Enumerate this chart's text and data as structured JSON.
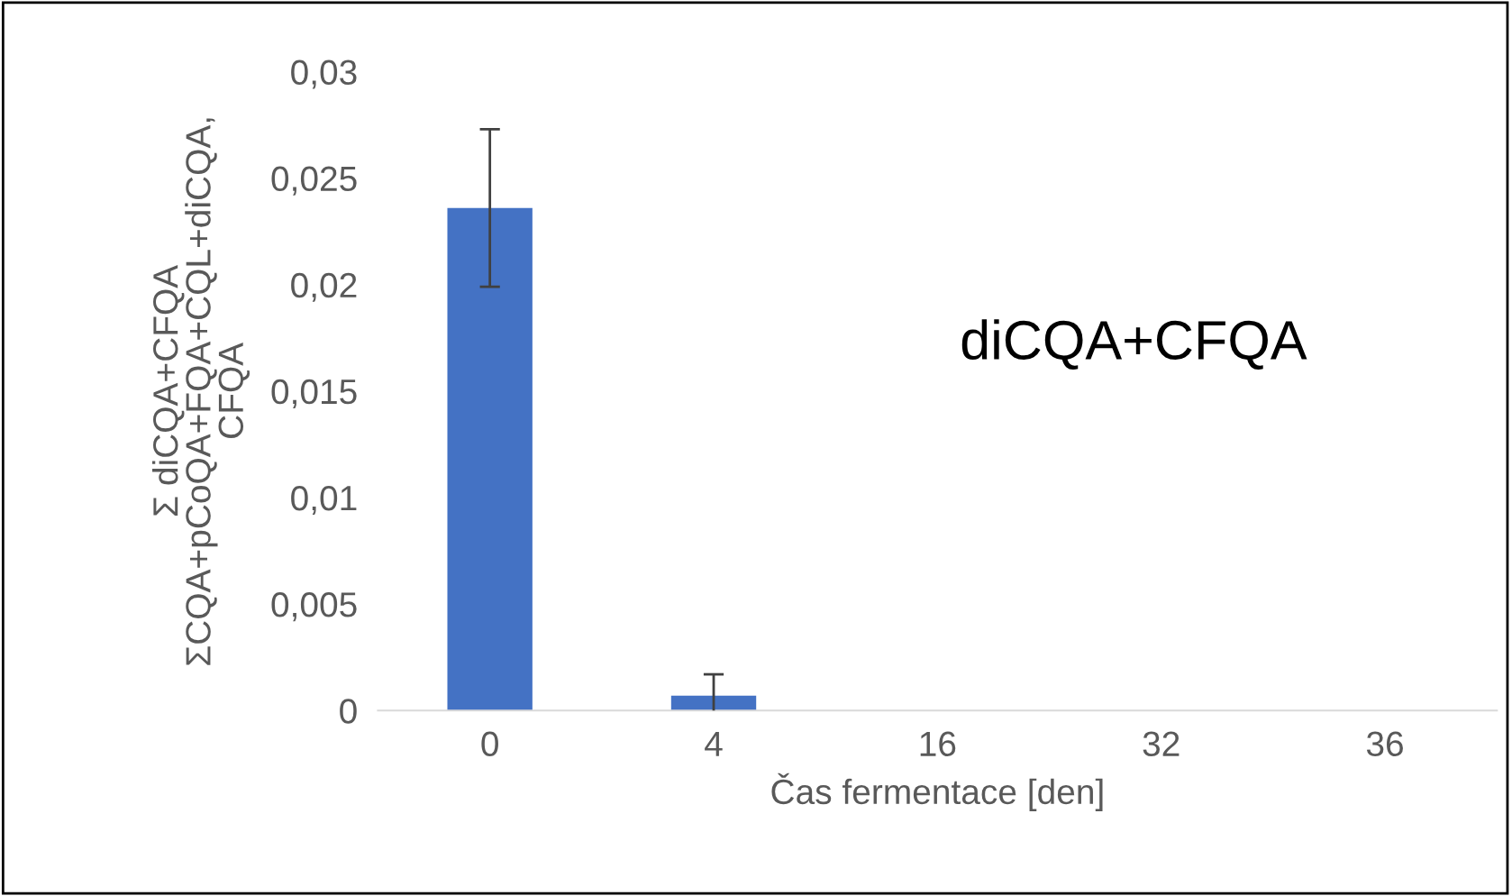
{
  "chart_data": {
    "type": "bar",
    "xlabel": "Čas fermentace [den]",
    "ylabel": "Σ diCQA+CFQA\nΣCQA+pCoQA+FQA+CQL+diCQA,\nCFQA",
    "categories": [
      "0",
      "4",
      "16",
      "32",
      "36"
    ],
    "values": [
      0.0236,
      0.0007,
      0,
      0,
      0
    ],
    "errors": [
      0.0037,
      0.001,
      null,
      null,
      null
    ],
    "color": "#4472c4",
    "ylim": [
      0,
      0.03
    ],
    "yticks": [
      {
        "value": 0,
        "label": "0"
      },
      {
        "value": 0.005,
        "label": "0,005"
      },
      {
        "value": 0.01,
        "label": "0,01"
      },
      {
        "value": 0.015,
        "label": "0,015"
      },
      {
        "value": 0.02,
        "label": "0,02"
      },
      {
        "value": 0.025,
        "label": "0,025"
      },
      {
        "value": 0.03,
        "label": "0,03"
      }
    ],
    "annotations": [
      "diCQA+CFQA"
    ],
    "grid": false,
    "legend": false
  }
}
